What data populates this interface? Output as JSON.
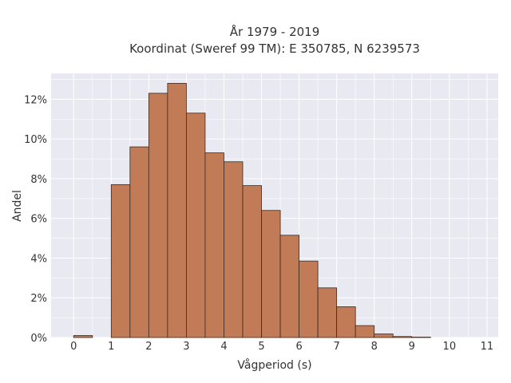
{
  "chart_data": {
    "type": "bar",
    "title": "År 1979 - 2019",
    "subtitle": "Koordinat (Sweref 99 TM): E 350785, N 6239573",
    "xlabel": "Vågperiod (s)",
    "ylabel": "Andel",
    "bin_width": 0.5,
    "bins": [
      {
        "start": 0.0,
        "value": 0.1
      },
      {
        "start": 1.0,
        "value": 7.7
      },
      {
        "start": 1.5,
        "value": 9.6
      },
      {
        "start": 2.0,
        "value": 12.3
      },
      {
        "start": 2.5,
        "value": 12.8
      },
      {
        "start": 3.0,
        "value": 11.3
      },
      {
        "start": 3.5,
        "value": 9.3
      },
      {
        "start": 4.0,
        "value": 8.85
      },
      {
        "start": 4.5,
        "value": 7.65
      },
      {
        "start": 5.0,
        "value": 6.4
      },
      {
        "start": 5.5,
        "value": 5.15
      },
      {
        "start": 6.0,
        "value": 3.85
      },
      {
        "start": 6.5,
        "value": 2.5
      },
      {
        "start": 7.0,
        "value": 1.55
      },
      {
        "start": 7.5,
        "value": 0.6
      },
      {
        "start": 8.0,
        "value": 0.18
      },
      {
        "start": 8.5,
        "value": 0.05
      },
      {
        "start": 9.0,
        "value": 0.02
      }
    ],
    "xlim": [
      -0.6,
      11.3
    ],
    "ylim": [
      0,
      13.3
    ],
    "xticks": [
      0,
      1,
      2,
      3,
      4,
      5,
      6,
      7,
      8,
      9,
      10,
      11
    ],
    "yticks": [
      0,
      2,
      4,
      6,
      8,
      10,
      12
    ],
    "ytick_labels": [
      "0%",
      "2%",
      "4%",
      "6%",
      "8%",
      "10%",
      "12%"
    ],
    "grid": true,
    "colors": {
      "bar_fill": "#c17b56",
      "bar_edge": "#3a2a20",
      "plot_background": "#e9e9f1",
      "grid": "#ffffff"
    }
  }
}
